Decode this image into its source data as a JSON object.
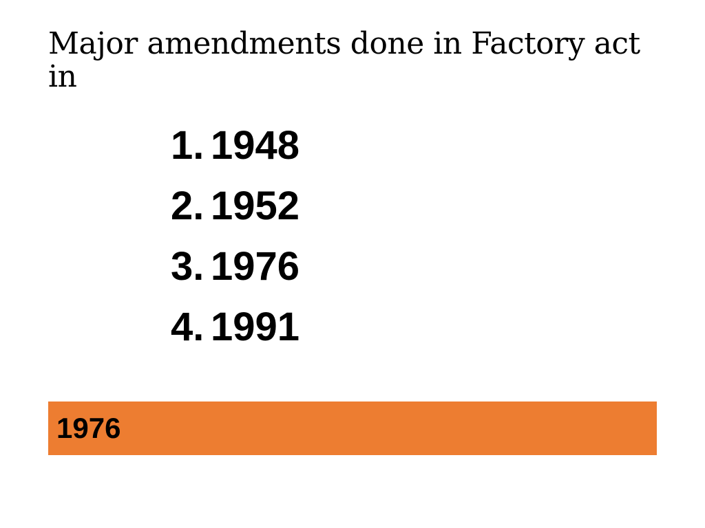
{
  "slide": {
    "title": "Major amendments done in Factory act in",
    "options": [
      {
        "number": "1.",
        "value": "1948"
      },
      {
        "number": "2.",
        "value": "1952"
      },
      {
        "number": "3.",
        "value": "1976"
      },
      {
        "number": "4.",
        "value": "1991"
      }
    ],
    "answer": "1976",
    "answer_color": "#ed7d31"
  }
}
